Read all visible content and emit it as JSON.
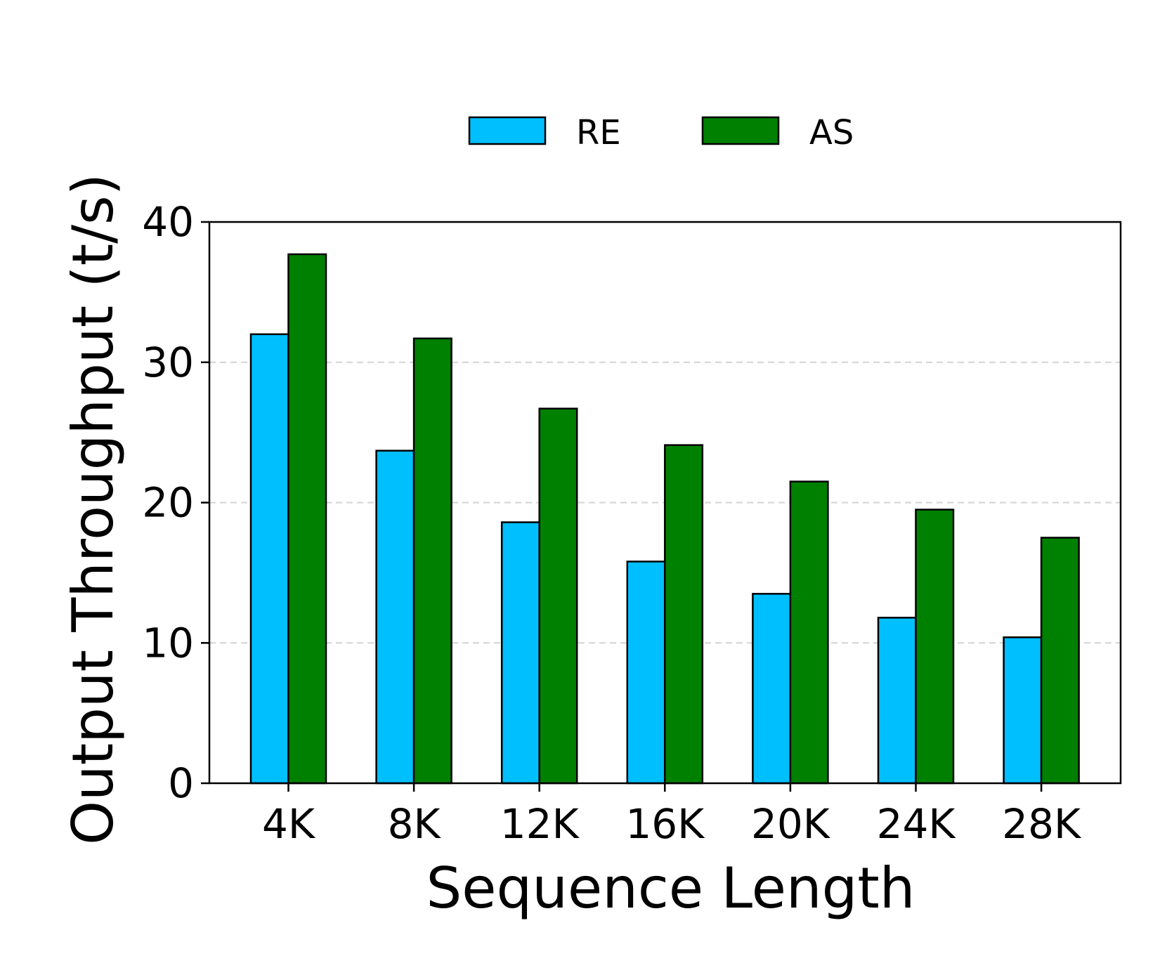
{
  "chart_data": {
    "type": "bar",
    "categories": [
      "4K",
      "8K",
      "12K",
      "16K",
      "20K",
      "24K",
      "28K"
    ],
    "series": [
      {
        "name": "RE",
        "color": "#00bfff",
        "values": [
          32.0,
          23.7,
          18.6,
          15.8,
          13.5,
          11.8,
          10.4
        ]
      },
      {
        "name": "AS",
        "color": "#008000",
        "values": [
          37.7,
          31.7,
          26.7,
          24.1,
          21.5,
          19.5,
          17.5
        ]
      }
    ],
    "xlabel": "Sequence Length",
    "ylabel": "Output Throughput (t/s)",
    "ylim": [
      0,
      40
    ],
    "yticks": [
      "0",
      "10",
      "20",
      "30",
      "40"
    ],
    "grid": "y-dashed",
    "legend": "top-center"
  }
}
